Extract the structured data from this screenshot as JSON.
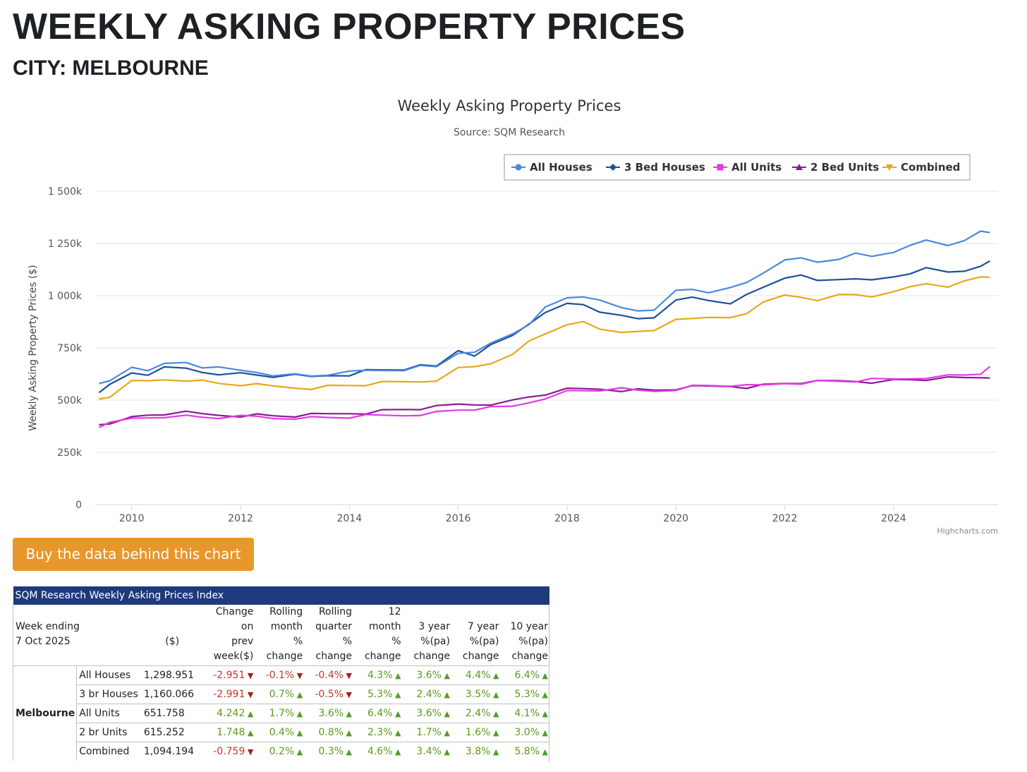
{
  "page": {
    "title": "WEEKLY ASKING PROPERTY PRICES",
    "subtitle": "CITY: MELBOURNE",
    "buy_button": "Buy the data behind this chart"
  },
  "colors": {
    "all_houses": "#4a88e0",
    "bed3_houses": "#1f4f9a",
    "all_units": "#e23be6",
    "bed2_units": "#8a1c91",
    "combined": "#e6a81c",
    "table_caption_bg": "#1f3a7a",
    "button_bg": "#e8972a"
  },
  "chart_data": {
    "type": "line",
    "title": "Weekly Asking Property Prices",
    "subtitle": "Source: SQM Research",
    "ylabel": "Weekly Asking Property Prices ($)",
    "xlabel": "",
    "ylim": [
      0,
      1500000
    ],
    "y_ticks": [
      "0",
      "250k",
      "500k",
      "750k",
      "1 000k",
      "1 250k",
      "1 500k"
    ],
    "x_ticks": [
      "2010",
      "2012",
      "2014",
      "2016",
      "2018",
      "2020",
      "2022",
      "2024"
    ],
    "credits": "Highcharts.com",
    "legend_position": "top-right",
    "grid": true,
    "x": [
      2009.4,
      2009.6,
      2010.0,
      2010.3,
      2010.6,
      2011.0,
      2011.3,
      2011.6,
      2012.0,
      2012.3,
      2012.6,
      2013.0,
      2013.3,
      2013.6,
      2014.0,
      2014.3,
      2014.6,
      2015.0,
      2015.3,
      2015.6,
      2016.0,
      2016.3,
      2016.6,
      2017.0,
      2017.3,
      2017.6,
      2018.0,
      2018.3,
      2018.6,
      2019.0,
      2019.3,
      2019.6,
      2020.0,
      2020.3,
      2020.6,
      2021.0,
      2021.3,
      2021.6,
      2022.0,
      2022.3,
      2022.6,
      2023.0,
      2023.3,
      2023.6,
      2024.0,
      2024.3,
      2024.6,
      2025.0,
      2025.3,
      2025.6,
      2025.77
    ],
    "series": [
      {
        "name": "All Houses",
        "color": "#4a88e0",
        "marker": "circle",
        "values": [
          570000,
          590000,
          660000,
          650000,
          670000,
          680000,
          660000,
          650000,
          640000,
          635000,
          625000,
          620000,
          615000,
          625000,
          630000,
          640000,
          645000,
          650000,
          660000,
          660000,
          730000,
          720000,
          770000,
          820000,
          870000,
          940000,
          990000,
          1000000,
          970000,
          940000,
          930000,
          940000,
          1020000,
          1030000,
          1020000,
          1030000,
          1060000,
          1110000,
          1180000,
          1175000,
          1160000,
          1180000,
          1195000,
          1185000,
          1210000,
          1250000,
          1260000,
          1240000,
          1270000,
          1300000,
          1299000
        ]
      },
      {
        "name": "3 Bed Houses",
        "color": "#1f4f9a",
        "marker": "diamond",
        "values": [
          545000,
          570000,
          630000,
          625000,
          650000,
          650000,
          635000,
          630000,
          625000,
          620000,
          615000,
          615000,
          610000,
          620000,
          625000,
          640000,
          645000,
          650000,
          660000,
          660000,
          740000,
          720000,
          760000,
          810000,
          870000,
          910000,
          960000,
          960000,
          930000,
          900000,
          890000,
          900000,
          970000,
          990000,
          980000,
          970000,
          1000000,
          1040000,
          1090000,
          1090000,
          1070000,
          1080000,
          1090000,
          1070000,
          1090000,
          1110000,
          1125000,
          1110000,
          1120000,
          1150000,
          1160000
        ]
      },
      {
        "name": "All Units",
        "color": "#e23be6",
        "marker": "square",
        "values": [
          375000,
          385000,
          410000,
          418000,
          425000,
          422000,
          418000,
          418000,
          418000,
          420000,
          415000,
          418000,
          415000,
          417000,
          420000,
          422000,
          425000,
          428000,
          435000,
          440000,
          452000,
          458000,
          460000,
          468000,
          490000,
          515000,
          540000,
          545000,
          550000,
          550000,
          545000,
          545000,
          555000,
          565000,
          570000,
          572000,
          565000,
          570000,
          582000,
          585000,
          588000,
          590000,
          593000,
          595000,
          598000,
          605000,
          612000,
          615000,
          620000,
          630000,
          652000
        ]
      },
      {
        "name": "2 Bed Units",
        "color": "#8a1c91",
        "marker": "triangle",
        "values": [
          385000,
          395000,
          415000,
          428000,
          435000,
          438000,
          432000,
          430000,
          428000,
          428000,
          425000,
          425000,
          427000,
          432000,
          438000,
          442000,
          448000,
          455000,
          460000,
          465000,
          478000,
          480000,
          485000,
          495000,
          515000,
          530000,
          548000,
          552000,
          555000,
          550000,
          548000,
          548000,
          555000,
          560000,
          565000,
          568000,
          565000,
          570000,
          580000,
          585000,
          585000,
          590000,
          592000,
          590000,
          593000,
          598000,
          600000,
          602000,
          605000,
          610000,
          615000
        ]
      },
      {
        "name": "Combined",
        "color": "#e6a81c",
        "marker": "triangle-down",
        "values": [
          505000,
          520000,
          585000,
          590000,
          600000,
          600000,
          590000,
          580000,
          575000,
          570000,
          565000,
          560000,
          560000,
          565000,
          570000,
          575000,
          580000,
          585000,
          590000,
          600000,
          650000,
          660000,
          680000,
          710000,
          780000,
          820000,
          870000,
          870000,
          840000,
          830000,
          820000,
          830000,
          890000,
          900000,
          890000,
          895000,
          920000,
          960000,
          1000000,
          995000,
          985000,
          1000000,
          1005000,
          1000000,
          1010000,
          1040000,
          1060000,
          1050000,
          1065000,
          1090000,
          1094000
        ]
      }
    ]
  },
  "table": {
    "caption": "SQM Research Weekly Asking Prices Index",
    "week_label": "Week ending",
    "week_date": "7 Oct 2025",
    "unit_header": "($)",
    "headers": [
      [
        "Change",
        "on",
        "prev",
        "week($)"
      ],
      [
        "Rolling",
        "month",
        "%",
        "change"
      ],
      [
        "Rolling",
        "quarter",
        "%",
        "change"
      ],
      [
        "12 month",
        "%",
        "change"
      ],
      [
        "3 year",
        "%(pa)",
        "change"
      ],
      [
        "7 year",
        "%(pa)",
        "change"
      ],
      [
        "10 year",
        "%(pa)",
        "change"
      ]
    ],
    "city": "Melbourne",
    "rows": [
      {
        "type": "All Houses",
        "price": "1,298.951",
        "cells": [
          {
            "v": "-2.951",
            "d": "down"
          },
          {
            "v": "-0.1%",
            "d": "down"
          },
          {
            "v": "-0.4%",
            "d": "down"
          },
          {
            "v": "4.3%",
            "d": "up"
          },
          {
            "v": "3.6%",
            "d": "up"
          },
          {
            "v": "4.4%",
            "d": "up"
          },
          {
            "v": "6.4%",
            "d": "up"
          }
        ]
      },
      {
        "type": "3 br Houses",
        "price": "1,160.066",
        "cells": [
          {
            "v": "-2.991",
            "d": "down"
          },
          {
            "v": "0.7%",
            "d": "up"
          },
          {
            "v": "-0.5%",
            "d": "down"
          },
          {
            "v": "5.3%",
            "d": "up"
          },
          {
            "v": "2.4%",
            "d": "up"
          },
          {
            "v": "3.5%",
            "d": "up"
          },
          {
            "v": "5.3%",
            "d": "up"
          }
        ]
      },
      {
        "type": "All Units",
        "price": "651.758",
        "cells": [
          {
            "v": "4.242",
            "d": "up"
          },
          {
            "v": "1.7%",
            "d": "up"
          },
          {
            "v": "3.6%",
            "d": "up"
          },
          {
            "v": "6.4%",
            "d": "up"
          },
          {
            "v": "3.6%",
            "d": "up"
          },
          {
            "v": "2.4%",
            "d": "up"
          },
          {
            "v": "4.1%",
            "d": "up"
          }
        ]
      },
      {
        "type": "2 br Units",
        "price": "615.252",
        "cells": [
          {
            "v": "1.748",
            "d": "up"
          },
          {
            "v": "0.4%",
            "d": "up"
          },
          {
            "v": "0.8%",
            "d": "up"
          },
          {
            "v": "2.3%",
            "d": "up"
          },
          {
            "v": "1.7%",
            "d": "up"
          },
          {
            "v": "1.6%",
            "d": "up"
          },
          {
            "v": "3.0%",
            "d": "up"
          }
        ]
      },
      {
        "type": "Combined",
        "price": "1,094.194",
        "cells": [
          {
            "v": "-0.759",
            "d": "down"
          },
          {
            "v": "0.2%",
            "d": "up"
          },
          {
            "v": "0.3%",
            "d": "up"
          },
          {
            "v": "4.6%",
            "d": "up"
          },
          {
            "v": "3.4%",
            "d": "up"
          },
          {
            "v": "3.8%",
            "d": "up"
          },
          {
            "v": "5.8%",
            "d": "up"
          }
        ]
      }
    ]
  }
}
